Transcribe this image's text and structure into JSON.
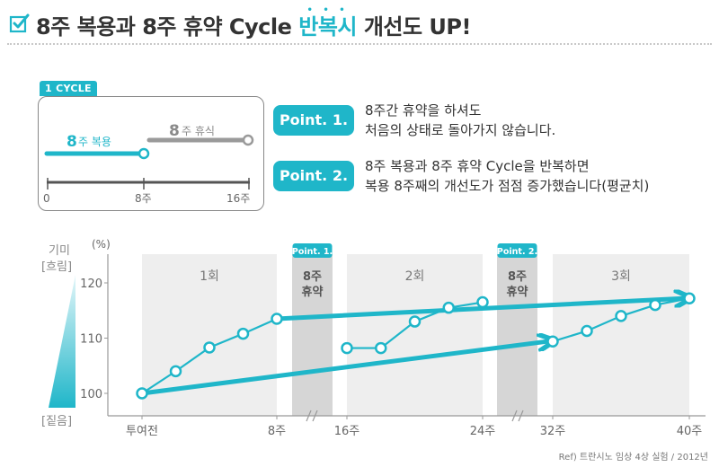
{
  "header": {
    "title_prefix": "8주 복용과 8주 휴약 Cycle ",
    "title_highlight": "반복시",
    "title_suffix": " 개선도 UP!",
    "highlight_dots": "• • •"
  },
  "cycle": {
    "tag": "1 CYCLE",
    "dose_num": "8",
    "dose_label": "주 복용",
    "rest_num": "8",
    "rest_label": "주 휴식",
    "ticks": [
      "0",
      "8주",
      "16주"
    ]
  },
  "points": [
    {
      "badge": "Point. 1.",
      "lines": [
        "8주간 휴약을 하셔도",
        "처음의 상태로 돌아가지 않습니다."
      ]
    },
    {
      "badge": "Point. 2.",
      "lines": [
        "8주 복용과 8주 휴약 Cycle을 반복하면",
        "복용 8주째의 개선도가 점점 증가했습니다(평균치)"
      ]
    }
  ],
  "legend": {
    "top_line1": "기미",
    "top_line2": "[흐림]",
    "bottom": "[짙음]",
    "unit": "(%)"
  },
  "source": "Ref) 트란시노 임상 4상 실험 / 2012년",
  "colors": {
    "accent": "#1fb6c9",
    "gray_band": "#eeeeee",
    "rest_band": "#d6d6d6"
  },
  "chart_data": {
    "type": "line",
    "title": "",
    "xlabel": "",
    "ylabel": "(%)",
    "ylim": [
      100,
      120
    ],
    "yticks": [
      100,
      110,
      120
    ],
    "x_tick_labels": [
      "투여전",
      "8주",
      "16주",
      "24주",
      "32주",
      "40주"
    ],
    "phases": [
      {
        "label": "1회",
        "kind": "dose"
      },
      {
        "label": "8주\n휴약",
        "kind": "rest",
        "badge": "Point. 1."
      },
      {
        "label": "2회",
        "kind": "dose"
      },
      {
        "label": "8주\n휴약",
        "kind": "rest",
        "badge": "Point. 2."
      },
      {
        "label": "3회",
        "kind": "dose"
      }
    ],
    "series": [
      {
        "x": [
          0,
          2,
          4,
          6,
          8
        ],
        "values": [
          100,
          104,
          108.3,
          110.8,
          113.5
        ]
      },
      {
        "x": [
          16,
          18,
          20,
          22,
          24
        ],
        "values": [
          108.2,
          108.2,
          113,
          115.5,
          116.5
        ]
      },
      {
        "x": [
          32,
          34,
          36,
          38,
          40
        ],
        "values": [
          109.4,
          111.3,
          114,
          116,
          117.2
        ]
      }
    ],
    "trend_arrows": [
      {
        "from": [
          8,
          113.5
        ],
        "to": [
          40,
          117.2
        ]
      },
      {
        "from": [
          0,
          100
        ],
        "to": [
          32,
          109.4
        ]
      }
    ]
  }
}
